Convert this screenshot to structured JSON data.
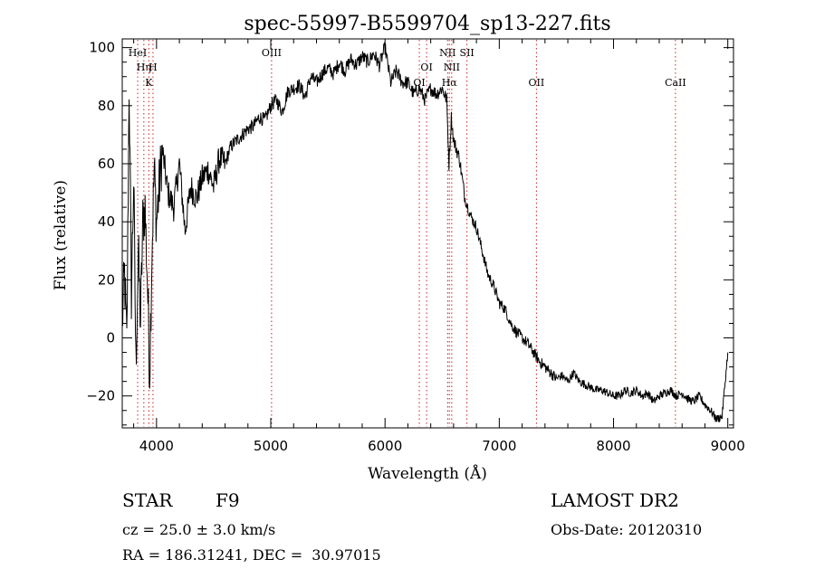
{
  "chart_data": {
    "type": "line",
    "title": "spec-55997-B5599704_sp13-227.fits",
    "xlabel": "Wavelength (Å)",
    "ylabel": "Flux (relative)",
    "xlim": [
      3700,
      9050
    ],
    "ylim": [
      -31,
      103
    ],
    "xticks": [
      4000,
      5000,
      6000,
      7000,
      8000,
      9000
    ],
    "yticks": [
      -20,
      0,
      20,
      40,
      60,
      80,
      100
    ],
    "grid": false,
    "series": [
      {
        "x": [
          3700,
          3720,
          3740,
          3760,
          3780,
          3800,
          3820,
          3840,
          3860,
          3880,
          3900,
          3920,
          3940,
          3960,
          3980,
          4000,
          4050,
          4100,
          4150,
          4200,
          4250,
          4300,
          4350,
          4400,
          4450,
          4500,
          4550,
          4600,
          4650,
          4700,
          4750,
          4800,
          4850,
          4900,
          4950,
          5000,
          5050,
          5100,
          5150,
          5200,
          5250,
          5300,
          5350,
          5400,
          5450,
          5500,
          5550,
          5600,
          5650,
          5700,
          5750,
          5800,
          5850,
          5900,
          5950,
          6000,
          6050,
          6100,
          6150,
          6200,
          6250,
          6300,
          6350,
          6400,
          6450,
          6500,
          6540,
          6560,
          6580,
          6600,
          6650,
          6700,
          6750,
          6800,
          6850,
          6900,
          6950,
          7000,
          7050,
          7100,
          7150,
          7200,
          7250,
          7300,
          7350,
          7400,
          7450,
          7500,
          7550,
          7600,
          7650,
          7700,
          7750,
          7800,
          7850,
          7900,
          7950,
          8000,
          8050,
          8100,
          8150,
          8200,
          8250,
          8300,
          8350,
          8400,
          8450,
          8500,
          8550,
          8600,
          8650,
          8700,
          8750,
          8800,
          8850,
          8900,
          8950,
          9000
        ],
        "y": [
          5,
          22,
          -2,
          88,
          15,
          55,
          -10,
          30,
          5,
          40,
          45,
          20,
          -12,
          30,
          58,
          40,
          65,
          50,
          45,
          60,
          37,
          52,
          48,
          55,
          58,
          52,
          62,
          60,
          66,
          68,
          70,
          72,
          73,
          76,
          75,
          80,
          82,
          78,
          85,
          86,
          87,
          83,
          90,
          88,
          91,
          93,
          91,
          95,
          92,
          96,
          94,
          97,
          95,
          98,
          94,
          100,
          88,
          92,
          88,
          88,
          84,
          86,
          82,
          86,
          84,
          86,
          82,
          60,
          76,
          68,
          62,
          48,
          42,
          38,
          30,
          22,
          18,
          12,
          10,
          5,
          2,
          0,
          -2,
          -5,
          -8,
          -10,
          -12,
          -14,
          -13,
          -15,
          -12,
          -15,
          -16,
          -17,
          -18,
          -18,
          -19,
          -20,
          -20,
          -18,
          -19,
          -18,
          -20,
          -19,
          -22,
          -20,
          -19,
          -18,
          -20,
          -19,
          -21,
          -22,
          -20,
          -23,
          -25,
          -28,
          -27,
          -5
        ]
      }
    ],
    "lines": [
      {
        "x": 3835,
        "labels": [
          "HeI"
        ],
        "row": 0
      },
      {
        "x": 3889,
        "labels": [
          "Hη"
        ],
        "row": 1
      },
      {
        "x": 3933,
        "labels": [
          "K"
        ],
        "row": 2
      },
      {
        "x": 3969,
        "labels": [
          "H"
        ],
        "row": 1
      },
      {
        "x": 5007,
        "labels": [
          "OIII"
        ],
        "row": 0
      },
      {
        "x": 6300,
        "labels": [
          "OI"
        ],
        "row": 2
      },
      {
        "x": 6364,
        "labels": [
          "OI"
        ],
        "row": 1
      },
      {
        "x": 6548,
        "labels": [
          "NII"
        ],
        "row": 0
      },
      {
        "x": 6563,
        "labels": [
          "Hα"
        ],
        "row": 2
      },
      {
        "x": 6584,
        "labels": [
          "NII"
        ],
        "row": 1
      },
      {
        "x": 6717,
        "labels": [
          "SII"
        ],
        "row": 0
      },
      {
        "x": 7325,
        "labels": [
          "OII"
        ],
        "row": 2
      },
      {
        "x": 8542,
        "labels": [
          "CaII"
        ],
        "row": 2
      }
    ]
  },
  "info": {
    "object_class": "STAR",
    "subclass": "F9",
    "cz": "cz = 25.0 ± 3.0 km/s",
    "radec": "RA = 186.31241, DEC =  30.97015",
    "survey": "LAMOST DR2",
    "obs_date": "Obs-Date: 20120310"
  },
  "colors": {
    "line": "#000000",
    "marker": "#cc2222",
    "axes": "#000000"
  }
}
